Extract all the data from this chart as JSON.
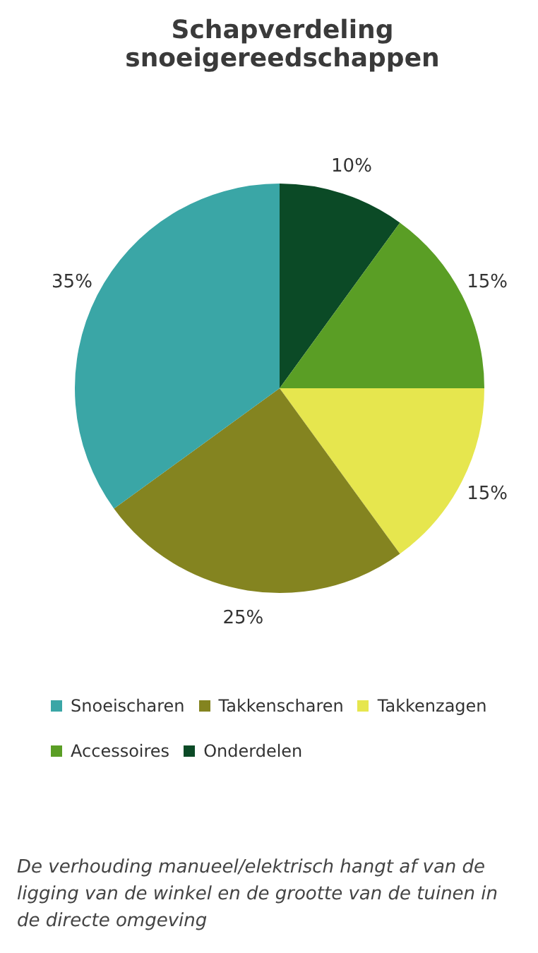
{
  "chart_data": {
    "type": "pie",
    "title": "Schapverdeling snoeigereedschappen",
    "categories": [
      "Snoeischaren",
      "Takkenscharen",
      "Takkenzagen",
      "Accessoires",
      "Onderdelen"
    ],
    "values": [
      35,
      25,
      15,
      15,
      10
    ],
    "colors": [
      "#3aa6a6",
      "#848420",
      "#e6e64e",
      "#5a9e25",
      "#0b4a26"
    ],
    "value_labels": [
      "35%",
      "25%",
      "15%",
      "15%",
      "10%"
    ],
    "legend": "bottom",
    "annotations": [
      "De verhouding manueel/elektrisch hangt af van de ligging van de winkel en de grootte van de tuinen in de directe omgeving"
    ]
  }
}
